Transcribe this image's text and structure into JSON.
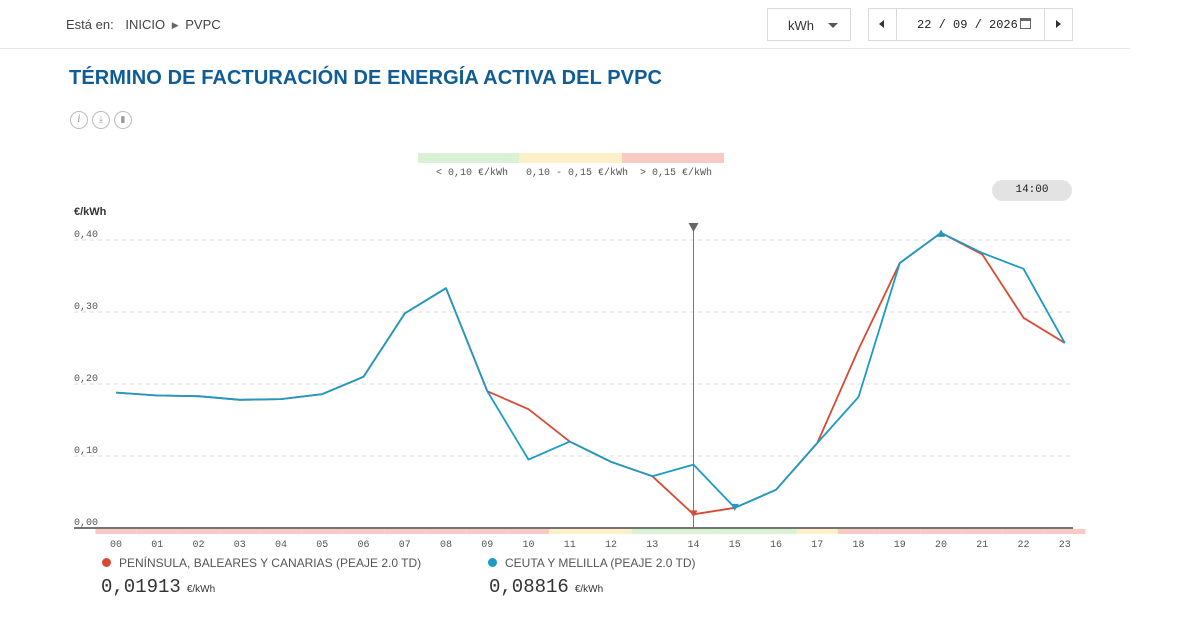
{
  "breadcrumb": {
    "label": "Está en:",
    "home": "INICIO",
    "current": "PVPC"
  },
  "unit_select": {
    "value": "kWh"
  },
  "date_picker": {
    "value": "22 / 09 / 2026"
  },
  "title": "TÉRMINO DE FACTURACIÓN DE ENERGÍA ACTIVA DEL PVPC",
  "price_bands": [
    {
      "label": "< 0,10 €/kWh",
      "color": "#d9f2d4"
    },
    {
      "label": "0,10 - 0,15 €/kWh",
      "color": "#fbf0c8"
    },
    {
      "label": "> 0,15 €/kWh",
      "color": "#f9c9c4"
    }
  ],
  "selected_hour": "14:00",
  "chart_data": {
    "type": "line",
    "ylabel": "€/kWh",
    "ylim": [
      0,
      0.4
    ],
    "y_ticks": [
      "0,00",
      "0,10",
      "0,20",
      "0,30",
      "0,40"
    ],
    "x": [
      "00",
      "01",
      "02",
      "03",
      "04",
      "05",
      "06",
      "07",
      "08",
      "09",
      "10",
      "11",
      "12",
      "13",
      "14",
      "15",
      "16",
      "17",
      "18",
      "19",
      "20",
      "21",
      "22",
      "23"
    ],
    "series": [
      {
        "name": "PENÍNSULA, BALEARES Y CANARIAS (PEAJE 2.0 TD)",
        "color": "#d94a34",
        "values": [
          0.188,
          0.184,
          0.183,
          0.178,
          0.179,
          0.186,
          0.21,
          0.298,
          0.333,
          0.19,
          0.165,
          0.12,
          0.092,
          0.072,
          0.019,
          0.028,
          0.053,
          0.118,
          0.248,
          0.368,
          0.41,
          0.38,
          0.292,
          0.257
        ]
      },
      {
        "name": "CEUTA Y MELILLA (PEAJE 2.0 TD)",
        "color": "#1a9cc4",
        "values": [
          0.188,
          0.184,
          0.183,
          0.178,
          0.179,
          0.186,
          0.21,
          0.298,
          0.333,
          0.19,
          0.095,
          0.12,
          0.092,
          0.072,
          0.088,
          0.028,
          0.053,
          0.118,
          0.182,
          0.368,
          0.41,
          0.382,
          0.36,
          0.257
        ]
      }
    ],
    "selected_index": 14,
    "hour_band_colors": [
      "#f9c9c4",
      "#f9c9c4",
      "#f9c9c4",
      "#f9c9c4",
      "#f9c9c4",
      "#f9c9c4",
      "#f9c9c4",
      "#f9c9c4",
      "#f9c9c4",
      "#f9c9c4",
      "#f9c9c4",
      "#fbf0c8",
      "#fbf0c8",
      "#d9f2d4",
      "#d9f2d4",
      "#d9f2d4",
      "#d9f2d4",
      "#fbf0c8",
      "#f9c9c4",
      "#f9c9c4",
      "#f9c9c4",
      "#f9c9c4",
      "#f9c9c4",
      "#f9c9c4"
    ]
  },
  "readout": {
    "peninsula_value": "0,01913",
    "ceuta_value": "0,08816",
    "unit": "€/kWh"
  }
}
